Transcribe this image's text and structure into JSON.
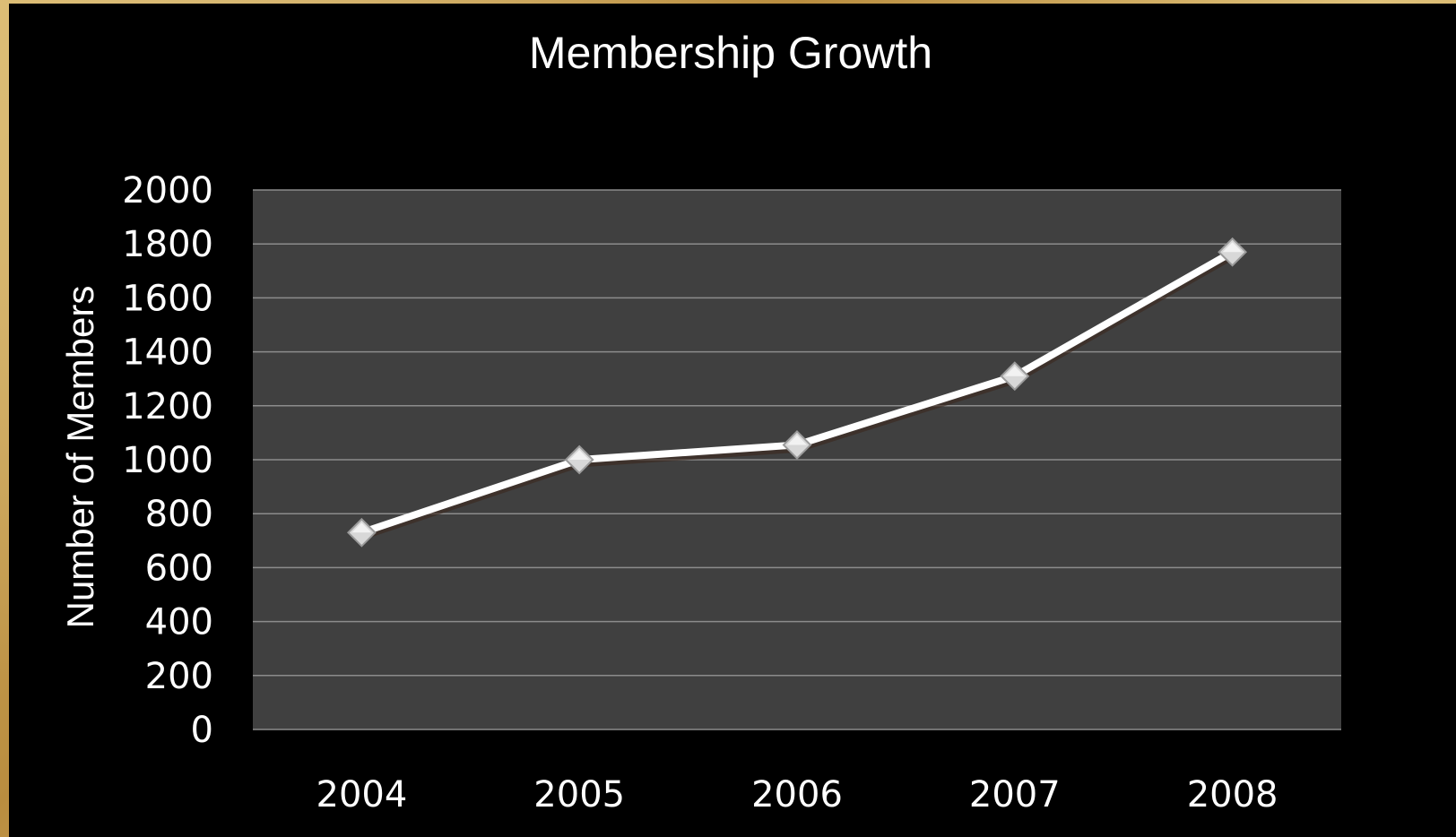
{
  "chart_data": {
    "type": "line",
    "title": "Membership Growth",
    "xlabel": "",
    "ylabel": "Number of Members",
    "categories": [
      "2004",
      "2005",
      "2006",
      "2007",
      "2008"
    ],
    "series": [
      {
        "values": [
          730,
          1000,
          1055,
          1310,
          1770
        ]
      }
    ],
    "ylim": [
      0,
      2000
    ],
    "yticks": [
      0,
      200,
      400,
      600,
      800,
      1000,
      1200,
      1400,
      1600,
      1800,
      2000
    ],
    "grid": true,
    "legend": "none",
    "colors": {
      "background": "#000000",
      "plot_area": "#404040",
      "gridline": "#8c8c8c",
      "line": "#ffffff",
      "marker": "#d8d8d8",
      "text": "#ffffff",
      "frame": "#c9a45a"
    }
  }
}
